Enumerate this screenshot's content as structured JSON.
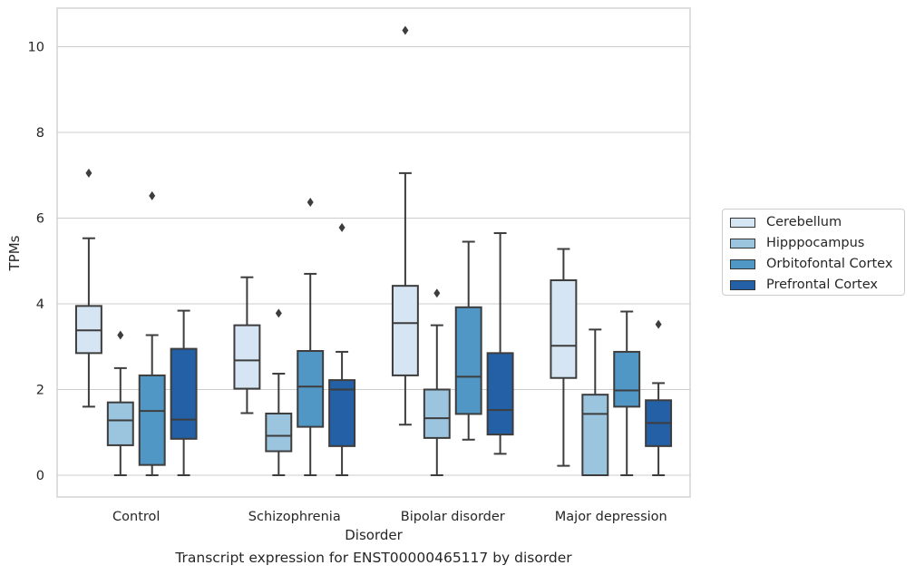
{
  "caption": "Transcript expression for ENST00000465117 by disorder",
  "chart_data": {
    "type": "boxplot",
    "xlabel": "Disorder",
    "ylabel": "TPMs",
    "ylim": [
      -0.5,
      10.9
    ],
    "yticks": [
      0,
      2,
      4,
      6,
      8,
      10
    ],
    "grid": true,
    "legend_position": "right",
    "categories": [
      "Control",
      "Schizophrenia",
      "Bipolar disorder",
      "Major depression"
    ],
    "series": [
      {
        "name": "Cerebellum",
        "color": "#d6e5f3",
        "boxes": [
          {
            "whislo": 1.6,
            "q1": 2.85,
            "med": 3.38,
            "q3": 3.95,
            "whishi": 5.53,
            "fliers": [
              7.05
            ]
          },
          {
            "whislo": 1.45,
            "q1": 2.02,
            "med": 2.68,
            "q3": 3.5,
            "whishi": 4.62,
            "fliers": []
          },
          {
            "whislo": 1.18,
            "q1": 2.33,
            "med": 3.55,
            "q3": 4.42,
            "whishi": 7.05,
            "fliers": [
              10.38
            ]
          },
          {
            "whislo": 0.22,
            "q1": 2.27,
            "med": 3.02,
            "q3": 4.55,
            "whishi": 5.28,
            "fliers": []
          }
        ]
      },
      {
        "name": "Hipppocampus",
        "color": "#9bc4de",
        "boxes": [
          {
            "whislo": 0.0,
            "q1": 0.7,
            "med": 1.28,
            "q3": 1.7,
            "whishi": 2.5,
            "fliers": [
              3.27
            ]
          },
          {
            "whislo": 0.0,
            "q1": 0.56,
            "med": 0.92,
            "q3": 1.44,
            "whishi": 2.37,
            "fliers": [
              3.78
            ]
          },
          {
            "whislo": 0.0,
            "q1": 0.87,
            "med": 1.33,
            "q3": 2.0,
            "whishi": 3.5,
            "fliers": [
              4.25
            ]
          },
          {
            "whislo": 0.0,
            "q1": 0.0,
            "med": 1.43,
            "q3": 1.88,
            "whishi": 3.4,
            "fliers": []
          }
        ]
      },
      {
        "name": "Orbitofontal Cortex",
        "color": "#5097c5",
        "boxes": [
          {
            "whislo": 0.0,
            "q1": 0.24,
            "med": 1.5,
            "q3": 2.33,
            "whishi": 3.27,
            "fliers": [
              6.52
            ]
          },
          {
            "whislo": 0.0,
            "q1": 1.13,
            "med": 2.07,
            "q3": 2.9,
            "whishi": 4.7,
            "fliers": [
              6.37
            ]
          },
          {
            "whislo": 0.83,
            "q1": 1.43,
            "med": 2.3,
            "q3": 3.92,
            "whishi": 5.45,
            "fliers": []
          },
          {
            "whislo": 0.0,
            "q1": 1.6,
            "med": 1.98,
            "q3": 2.88,
            "whishi": 3.82,
            "fliers": []
          }
        ]
      },
      {
        "name": "Prefrontal Cortex",
        "color": "#2460a6",
        "boxes": [
          {
            "whislo": 0.0,
            "q1": 0.85,
            "med": 1.3,
            "q3": 2.95,
            "whishi": 3.84,
            "fliers": []
          },
          {
            "whislo": 0.0,
            "q1": 0.68,
            "med": 2.0,
            "q3": 2.22,
            "whishi": 2.88,
            "fliers": [
              5.78
            ]
          },
          {
            "whislo": 0.5,
            "q1": 0.95,
            "med": 1.52,
            "q3": 2.85,
            "whishi": 5.65,
            "fliers": []
          },
          {
            "whislo": 0.0,
            "q1": 0.68,
            "med": 1.22,
            "q3": 1.75,
            "whishi": 2.15,
            "fliers": [
              3.52
            ]
          }
        ]
      }
    ]
  }
}
